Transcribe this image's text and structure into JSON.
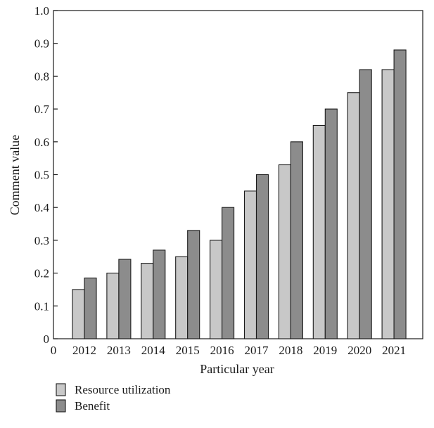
{
  "chart_data": {
    "type": "bar",
    "categories": [
      "2012",
      "2013",
      "2014",
      "2015",
      "2016",
      "2017",
      "2018",
      "2019",
      "2020",
      "2021"
    ],
    "series": [
      {
        "name": "Resource utilization",
        "color": "#c8c8c8",
        "values": [
          0.15,
          0.2,
          0.23,
          0.25,
          0.3,
          0.45,
          0.53,
          0.65,
          0.75,
          0.82
        ]
      },
      {
        "name": "Benefit",
        "color": "#8c8c8c",
        "values": [
          0.185,
          0.242,
          0.27,
          0.33,
          0.4,
          0.5,
          0.6,
          0.7,
          0.82,
          0.88
        ]
      }
    ],
    "xlabel": "Particular year",
    "ylabel": "Comment value",
    "x_origin_label": "0",
    "ylim": [
      0,
      1.0
    ],
    "yticks": [
      "0",
      "0.1",
      "0.2",
      "0.3",
      "0.4",
      "0.5",
      "0.6",
      "0.7",
      "0.8",
      "0.9",
      "1.0"
    ],
    "grid": false,
    "legend_position": "bottom-left"
  }
}
